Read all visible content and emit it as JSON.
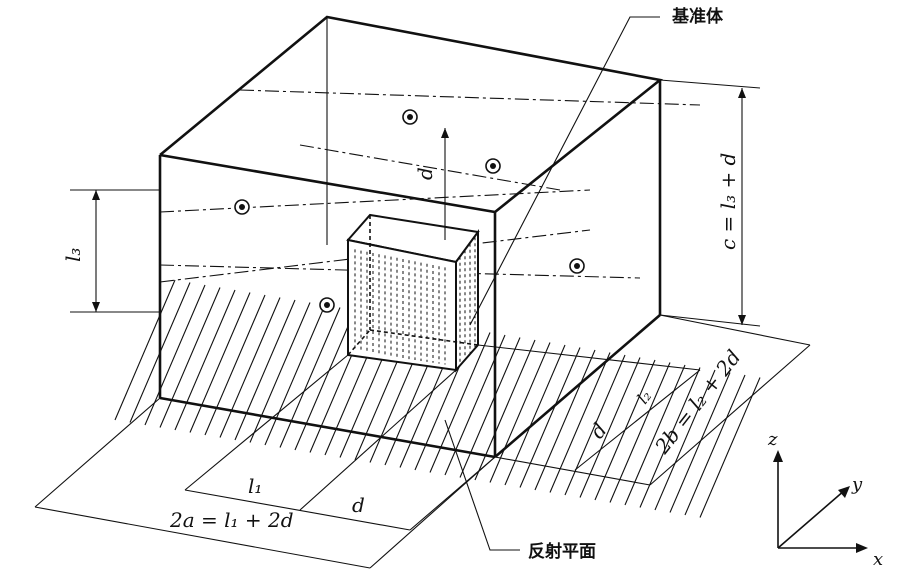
{
  "labels": {
    "reference_box": "基准体",
    "reflecting_plane": "反射平面",
    "dim_2a": "2a = l₁ + 2d",
    "dim_2b": "2b = l₂ + 2d",
    "dim_c": "c = l₃ + d",
    "dim_l1": "l₁",
    "dim_l2": "l₂",
    "dim_l3": "l₃",
    "dim_d_inner": "d",
    "dim_d_bottom": "d",
    "dim_d_right": "d",
    "axis_x": "x",
    "axis_y": "y",
    "axis_z": "z"
  }
}
